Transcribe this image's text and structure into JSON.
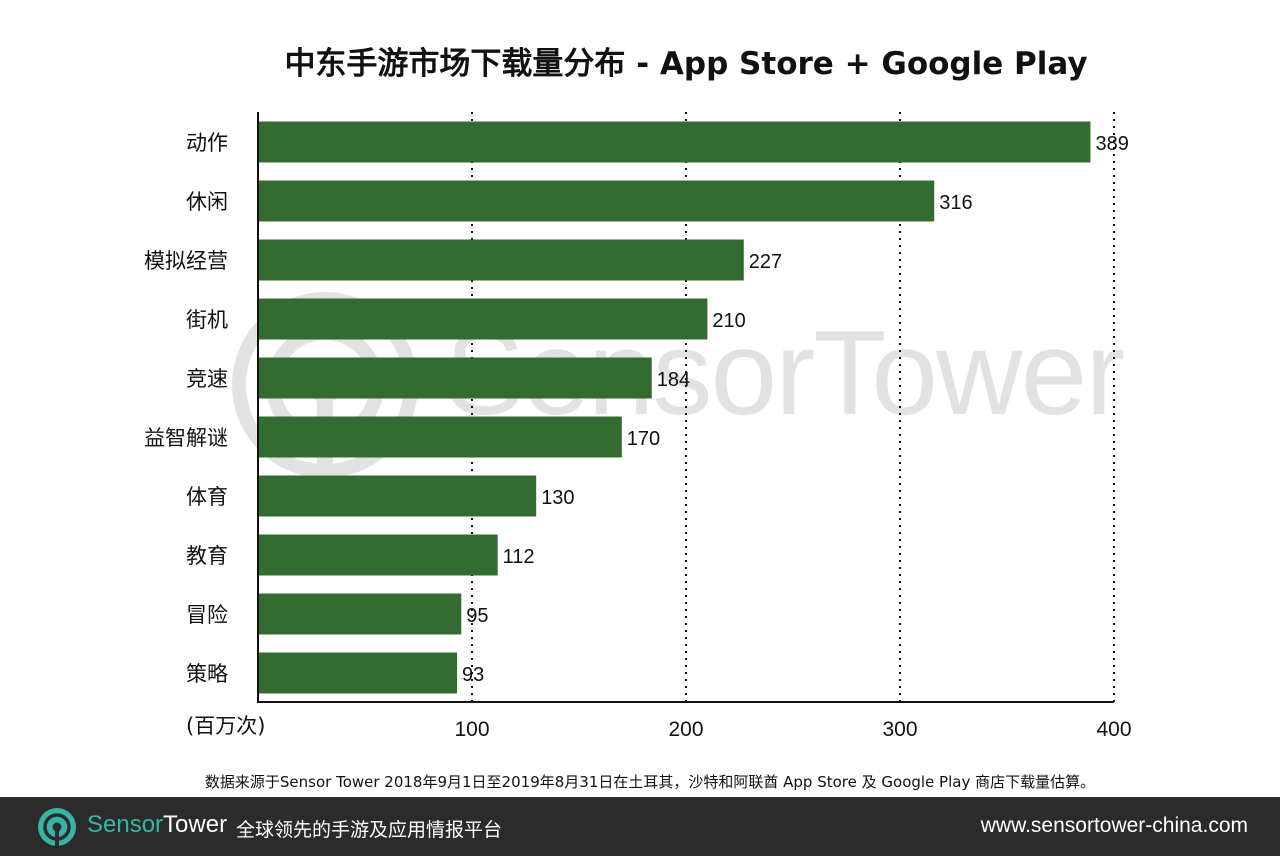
{
  "chart_data": {
    "type": "bar",
    "orientation": "horizontal",
    "title": "中东手游市场下载量分布 - App Store + Google Play",
    "unit_label": "(百万次)",
    "categories": [
      "动作",
      "休闲",
      "模拟经营",
      "街机",
      "竞速",
      "益智解谜",
      "体育",
      "教育",
      "冒险",
      "策略"
    ],
    "values": [
      389,
      316,
      227,
      210,
      184,
      170,
      130,
      112,
      95,
      93
    ],
    "xlim": [
      0,
      400
    ],
    "xticks": [
      100,
      200,
      300,
      400
    ],
    "grid": "vertical dotted",
    "bar_color": "#336b31"
  },
  "watermark": {
    "text": "SensorTower"
  },
  "source_note": "数据来源于Sensor Tower 2018年9月1日至2019年8月31日在土耳其，沙特和阿联酋 App Store 及 Google Play 商店下载量估算。",
  "footer": {
    "brand_sensor": "Sensor",
    "brand_tower": "Tower",
    "slogan": "全球领先的手游及应用情报平台",
    "url": "www.sensortower-china.com",
    "logo_icon": "sensortower-logo-icon",
    "accent_color": "#35b6a4",
    "background_color": "#2b2b2b"
  }
}
